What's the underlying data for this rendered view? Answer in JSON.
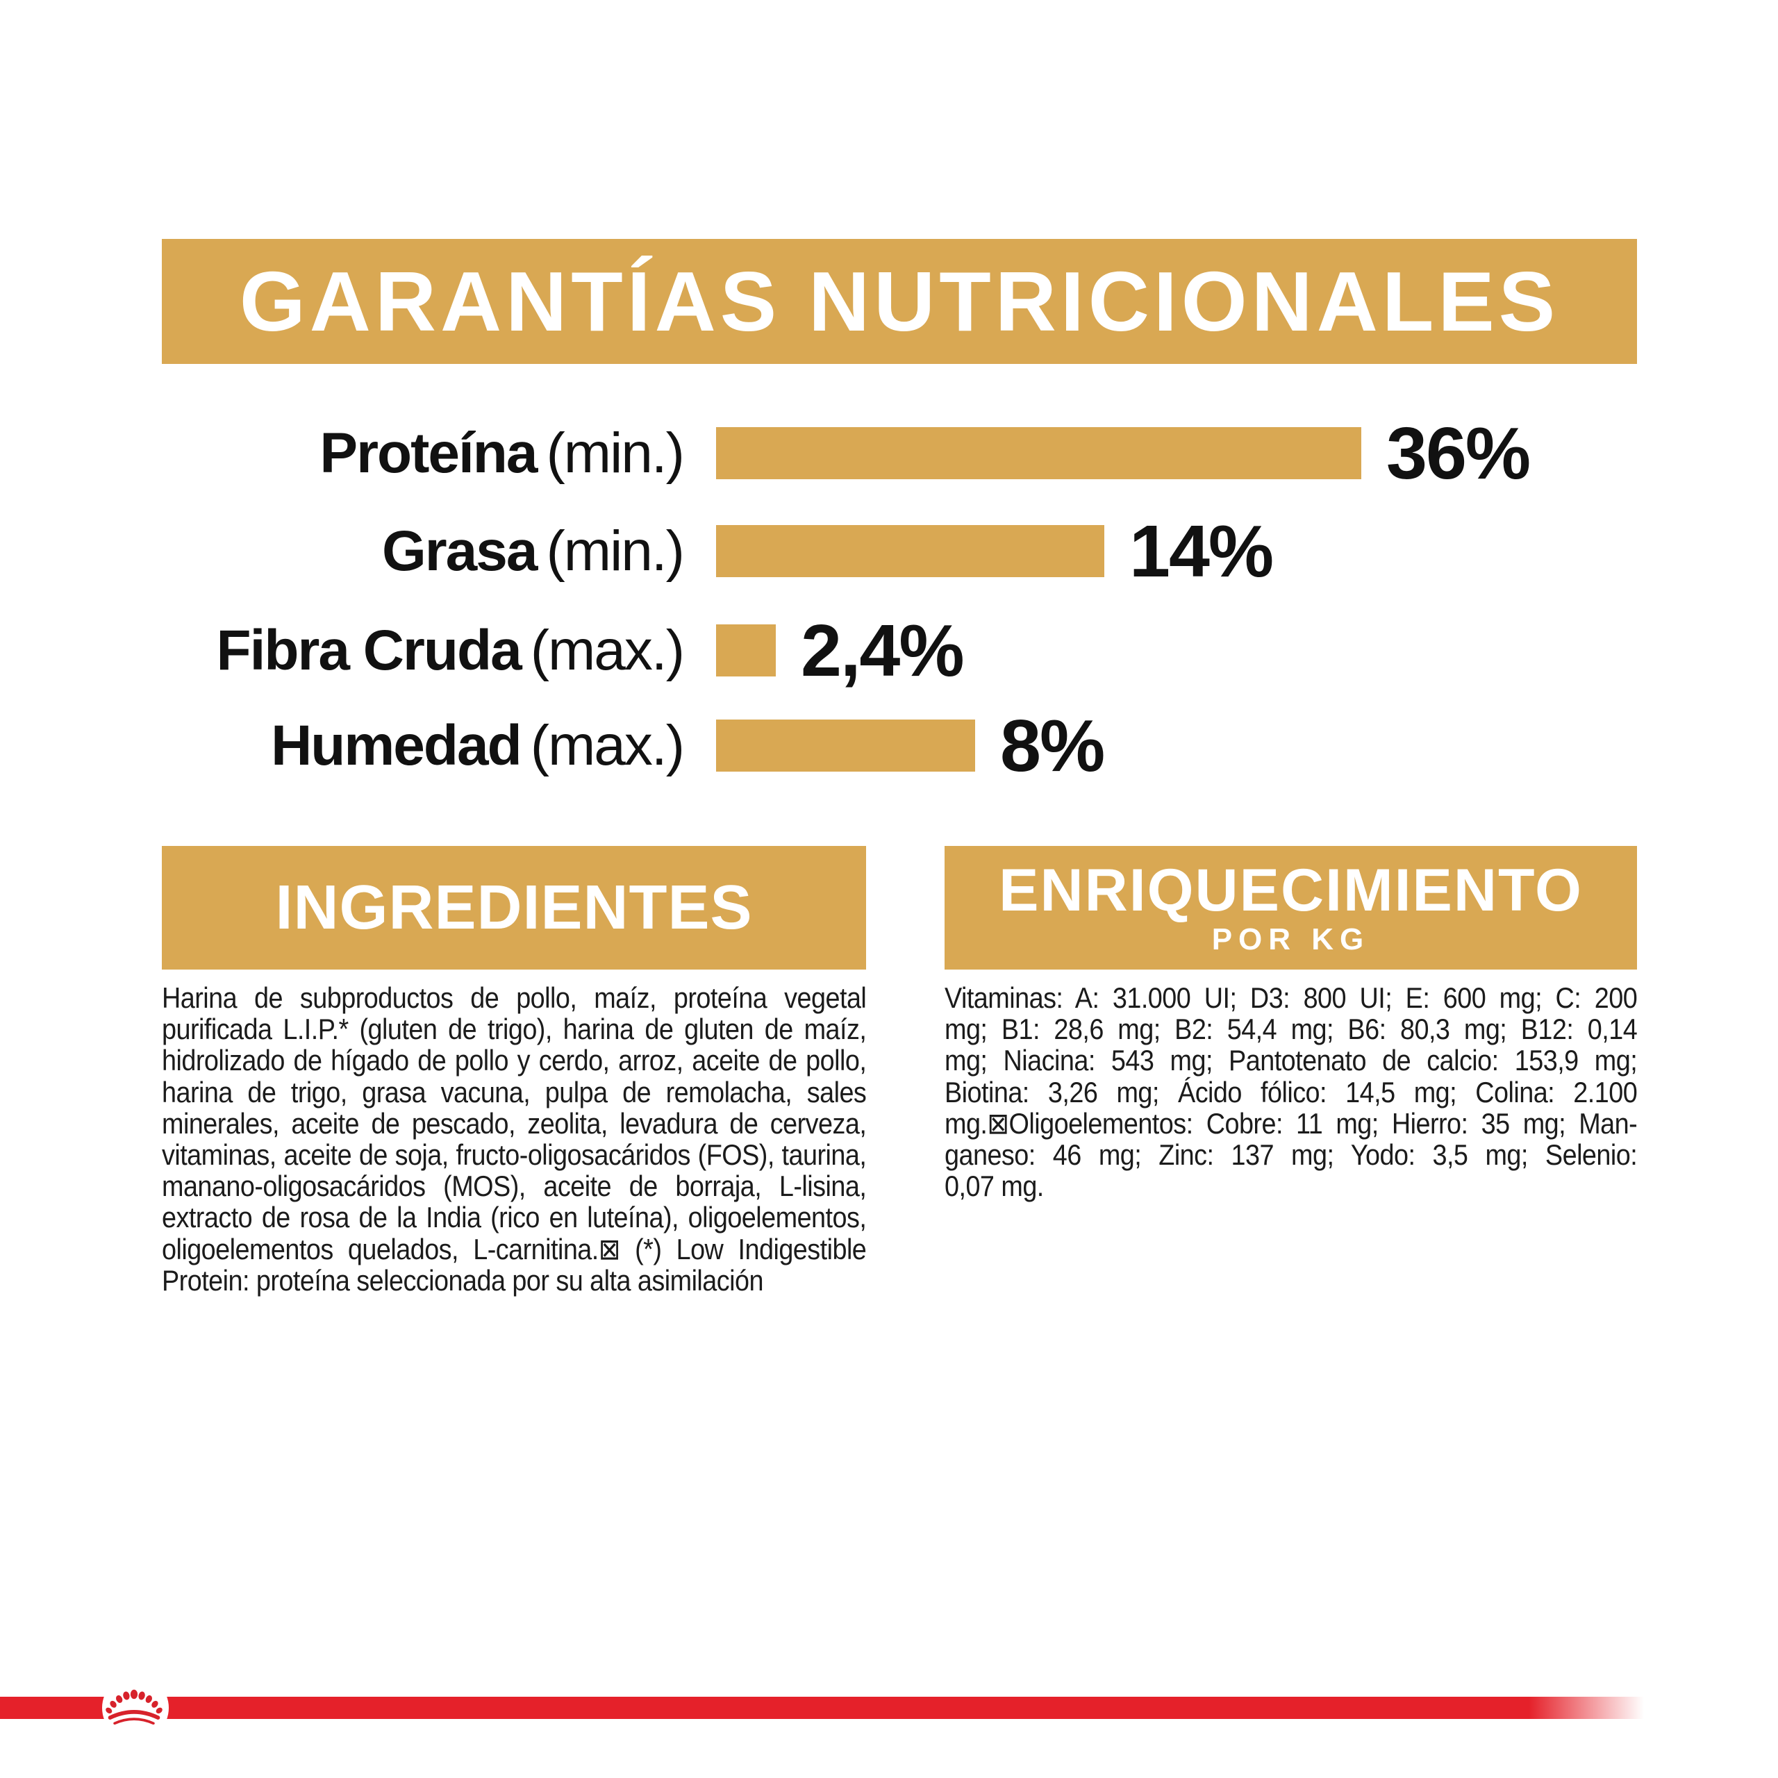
{
  "colors": {
    "gold": "#D9A853",
    "text_black": "#111111",
    "white": "#ffffff",
    "stripe_red": "#E5212A",
    "crown_red": "#D7222B"
  },
  "header": {
    "title": "GARANTÍAS NUTRICIONALES"
  },
  "chart_data": {
    "type": "bar",
    "orientation": "horizontal",
    "title": "GARANTÍAS NUTRICIONALES",
    "categories": [
      "Proteína",
      "Grasa",
      "Fibra Cruda",
      "Humedad"
    ],
    "qualifiers": [
      "(min.)",
      "(min.)",
      "(max.)",
      "(max.)"
    ],
    "values": [
      36,
      14,
      2.4,
      8
    ],
    "value_labels": [
      "36%",
      "14%",
      "2,4%",
      "8%"
    ],
    "unit": "%",
    "bar_color": "#D9A853",
    "bar_pixel_widths": [
      929,
      559,
      86,
      373
    ],
    "row_offsets": [
      0,
      141,
      284,
      421
    ],
    "slugs": [
      "proteina",
      "grasa",
      "fibra-cruda",
      "humedad"
    ],
    "grid": false,
    "legend": null
  },
  "ingredients": {
    "heading": "INGREDIENTES",
    "lines": [
      "Harina de subproductos de pollo, maíz, proteína vegetal",
      "purificada L.I.P.* (gluten de trigo), harina de gluten de maíz,",
      "hidrolizado de hígado de pollo y cerdo, arroz, aceite de pollo,",
      "harina de trigo, grasa vacuna, pulpa de remolacha, sales",
      "minerales, aceite de pescado, zeolita, levadura de cerveza,",
      "vitaminas, aceite de soja, fructo-oligosacáridos (FOS), taurina,",
      "manano-oligosacáridos (MOS), aceite de borraja, L-lisina,",
      "extracto de rosa de la India (rico en luteína), oligoelementos,",
      "oligoelementos quelados, L-carnitina.⊠ (*) Low Indigestible",
      "Protein: proteína seleccionada por su alta asimilación"
    ]
  },
  "enrichment": {
    "heading": "ENRIQUECIMIENTO",
    "subheading": "POR KG",
    "lines": [
      "Vitaminas: A: 31.000 UI; D3: 800 UI; E: 600 mg; C: 200",
      "mg; B1: 28,6 mg; B2: 54,4 mg; B6: 80,3 mg; B12: 0,14",
      "mg; Niacina: 543 mg; Pantotenato de calcio: 153,9 mg;",
      "Biotina: 3,26 mg; Ácido fólico: 14,5 mg; Colina: 2.100",
      "mg.⊠Oligoelementos: Cobre: 11 mg; Hierro: 35 mg; Man-",
      "ganeso: 46 mg; Zinc: 137 mg; Yodo: 3,5 mg; Selenio:",
      "0,07 mg."
    ]
  },
  "footer": {
    "brand_logo": "royal-canin-crown"
  }
}
